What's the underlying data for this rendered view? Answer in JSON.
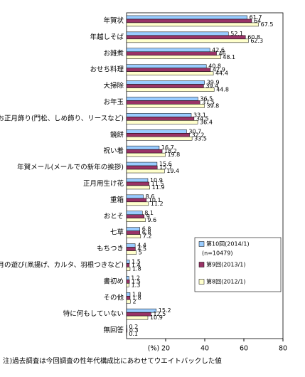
{
  "chart_data": {
    "type": "bar",
    "orientation": "horizontal",
    "categories": [
      "年賀状",
      "年越しそば",
      "お雑煮",
      "おせち料理",
      "大掃除",
      "お年玉",
      "お正月飾り(門松、しめ飾り、リースなど)",
      "鏡餅",
      "祝い着",
      "年賀メール(メールでの新年の挨拶)",
      "正月用生け花",
      "重箱",
      "おとそ",
      "七草",
      "もちつき",
      "正月の遊び(凧揚げ、カルタ、羽根つきなど)",
      "書初め",
      "その他",
      "特に何もしていない",
      "無回答"
    ],
    "series": [
      {
        "name": "第10回(2014/1)",
        "note": "(n=10479)",
        "color": "#99ccff",
        "values": [
          61.7,
          52.1,
          42.6,
          40.8,
          39.9,
          36.5,
          33.1,
          30.7,
          16.7,
          15.6,
          10.9,
          8.6,
          8.1,
          6.8,
          4.4,
          1.5,
          1.2,
          1.8,
          15.2,
          0.2
        ]
      },
      {
        "name": "第9回(2013/1)",
        "color": "#993366",
        "values": [
          64.0,
          60.8,
          46.0,
          42.9,
          39.4,
          37.5,
          34.5,
          32.2,
          18.2,
          15.7,
          11.5,
          10.1,
          9.0,
          6.8,
          4.5,
          1.4,
          1.5,
          1.8,
          12.5,
          0.3
        ]
      },
      {
        "name": "第8回(2012/1)",
        "color": "#ffffcc",
        "values": [
          67.5,
          62.3,
          48.1,
          44.4,
          44.8,
          39.8,
          36.4,
          33.5,
          19.8,
          19.4,
          11.9,
          11.2,
          9.6,
          7.2,
          5.0,
          1.8,
          1.3,
          2.0,
          10.9,
          0.1
        ]
      }
    ],
    "xlim": [
      0,
      80
    ],
    "xticks": [
      20,
      40,
      60,
      80
    ],
    "x_label": "(%)",
    "footnote": "注)過去調査は今回調査の性年代構成比にあわせてウエイトバックした値"
  }
}
